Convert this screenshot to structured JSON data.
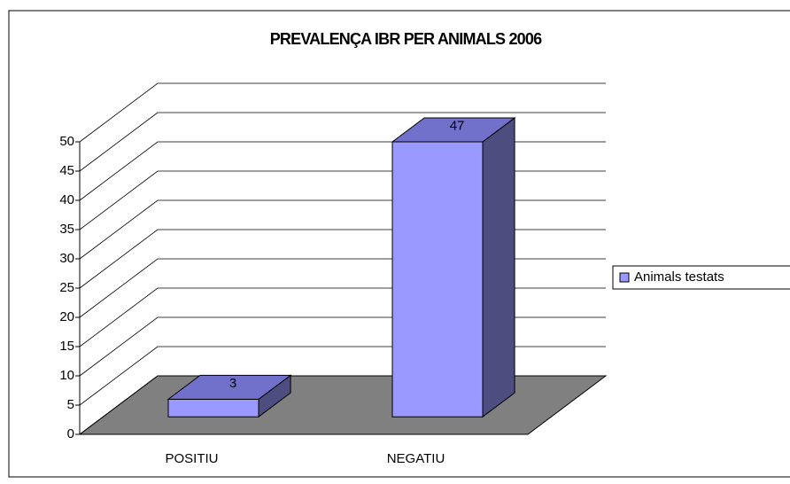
{
  "chart_data": {
    "type": "bar3d",
    "title": "PREVALENÇA IBR PER ANIMALS 2006",
    "categories": [
      "POSITIU",
      "NEGATIU"
    ],
    "series": [
      {
        "name": "Animals testats",
        "color": "#9999ff",
        "values": [
          3,
          47
        ]
      }
    ],
    "ylim": [
      0,
      50
    ],
    "yticks": [
      0,
      5,
      10,
      15,
      20,
      25,
      30,
      35,
      40,
      45,
      50
    ],
    "grid": true,
    "legend": "right"
  }
}
